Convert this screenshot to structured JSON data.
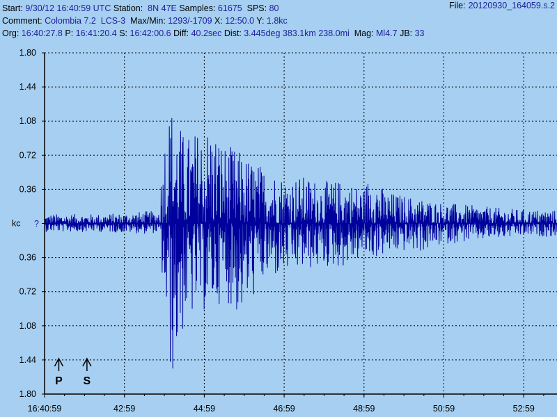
{
  "header": {
    "file_label": "File:",
    "file_value": "20120930_164059.s.2",
    "line1": [
      {
        "t": "Start: ",
        "k": "l"
      },
      {
        "t": "9/30/12 16:40:59 UTC",
        "k": "v"
      },
      {
        "t": " Station: ",
        "k": "l"
      },
      {
        "t": " 8N 47E",
        "k": "v"
      },
      {
        "t": " Samples: ",
        "k": "l"
      },
      {
        "t": "61675",
        "k": "v"
      },
      {
        "t": "  SPS: ",
        "k": "l"
      },
      {
        "t": "80",
        "k": "v"
      }
    ],
    "line2": [
      {
        "t": "Comment: ",
        "k": "l"
      },
      {
        "t": "Colombia 7.2  LCS-3",
        "k": "v"
      },
      {
        "t": "  Max/Min: ",
        "k": "l"
      },
      {
        "t": "1293/-1709",
        "k": "v"
      },
      {
        "t": " X: ",
        "k": "l"
      },
      {
        "t": "12:50.0",
        "k": "v"
      },
      {
        "t": " Y: ",
        "k": "l"
      },
      {
        "t": "1.8kc",
        "k": "v"
      }
    ],
    "line3": [
      {
        "t": "Org: ",
        "k": "l"
      },
      {
        "t": "16:40:27.8",
        "k": "v"
      },
      {
        "t": " P: ",
        "k": "l"
      },
      {
        "t": "16:41:20.4",
        "k": "v"
      },
      {
        "t": " S: ",
        "k": "l"
      },
      {
        "t": "16:42:00.6",
        "k": "v"
      },
      {
        "t": " Diff: ",
        "k": "l"
      },
      {
        "t": "40.2sec",
        "k": "v"
      },
      {
        "t": " Dist: ",
        "k": "l"
      },
      {
        "t": "3.445deg 383.1km 238.0mi",
        "k": "v"
      },
      {
        "t": "  Mag: ",
        "k": "l"
      },
      {
        "t": "Ml4.7",
        "k": "v"
      },
      {
        "t": " JB: ",
        "k": "l"
      },
      {
        "t": "33",
        "k": "v"
      }
    ]
  },
  "colors": {
    "background": "#a6cff1",
    "label": "#000000",
    "value": "#1f1f9a",
    "trace": "#00009c",
    "grid": "#000000",
    "axis": "#000000"
  },
  "chart_data": {
    "type": "line",
    "ylabel": "kc",
    "ylabel_marker": "?",
    "xlim": [
      "16:40:59",
      "16:53:49"
    ],
    "ylim": [
      -1.8,
      1.8
    ],
    "x_ticks": [
      "16:40:59",
      "42:59",
      "44:59",
      "46:59",
      "48:59",
      "50:59",
      "52:59"
    ],
    "y_ticks": [
      {
        "value": 1.8,
        "label": "1.80"
      },
      {
        "value": 1.44,
        "label": "1.44"
      },
      {
        "value": 1.08,
        "label": "1.08"
      },
      {
        "value": 0.72,
        "label": "0.72"
      },
      {
        "value": 0.36,
        "label": "0.36"
      },
      {
        "value": 0,
        "label": "kc"
      },
      {
        "value": -0.36,
        "label": "0.36"
      },
      {
        "value": -0.72,
        "label": "0.72"
      },
      {
        "value": -1.08,
        "label": "1.08"
      },
      {
        "value": -1.44,
        "label": "1.44"
      },
      {
        "value": -1.8,
        "label": "1.80"
      }
    ],
    "grid": true,
    "markers": [
      {
        "label": "P",
        "time": "16:41:20.4"
      },
      {
        "label": "S",
        "time": "16:42:00.6"
      }
    ],
    "series": [
      {
        "name": "",
        "envelope": [
          {
            "t": "16:40:59",
            "max": 0.1,
            "min": -0.09
          },
          {
            "t": "16:41:30",
            "max": 0.1,
            "min": -0.09
          },
          {
            "t": "16:42:20",
            "max": 0.1,
            "min": -0.09
          },
          {
            "t": "16:43:00",
            "max": 0.11,
            "min": -0.1
          },
          {
            "t": "16:43:30",
            "max": 0.13,
            "min": -0.11
          },
          {
            "t": "16:43:50",
            "max": 0.13,
            "min": -0.1
          },
          {
            "t": "16:44:00",
            "max": 1.02,
            "min": -0.98
          },
          {
            "t": "16:44:09",
            "max": 1.29,
            "min": -1.71
          },
          {
            "t": "16:44:30",
            "max": 0.92,
            "min": -1.08
          },
          {
            "t": "16:44:50",
            "max": 1.0,
            "min": -0.96
          },
          {
            "t": "16:45:10",
            "max": 1.08,
            "min": -0.92
          },
          {
            "t": "16:45:30",
            "max": 0.85,
            "min": -0.8
          },
          {
            "t": "16:45:50",
            "max": 0.78,
            "min": -1.0
          },
          {
            "t": "16:46:00",
            "max": 0.72,
            "min": -0.92
          },
          {
            "t": "16:46:30",
            "max": 0.6,
            "min": -0.62
          },
          {
            "t": "16:47:00",
            "max": 0.5,
            "min": -0.55
          },
          {
            "t": "16:47:30",
            "max": 0.5,
            "min": -0.5
          },
          {
            "t": "16:48:00",
            "max": 0.45,
            "min": -0.48
          },
          {
            "t": "16:48:30",
            "max": 0.46,
            "min": -0.46
          },
          {
            "t": "16:49:00",
            "max": 0.38,
            "min": -0.36
          },
          {
            "t": "16:49:10",
            "max": 0.6,
            "min": -0.38
          },
          {
            "t": "16:49:30",
            "max": 0.34,
            "min": -0.34
          },
          {
            "t": "16:50:00",
            "max": 0.3,
            "min": -0.3
          },
          {
            "t": "16:50:30",
            "max": 0.26,
            "min": -0.3
          },
          {
            "t": "16:51:00",
            "max": 0.22,
            "min": -0.22
          },
          {
            "t": "16:51:30",
            "max": 0.2,
            "min": -0.2
          },
          {
            "t": "16:52:00",
            "max": 0.18,
            "min": -0.18
          },
          {
            "t": "16:52:30",
            "max": 0.16,
            "min": -0.16
          },
          {
            "t": "16:53:00",
            "max": 0.15,
            "min": -0.14
          },
          {
            "t": "16:53:49",
            "max": 0.14,
            "min": -0.14
          }
        ]
      }
    ]
  }
}
